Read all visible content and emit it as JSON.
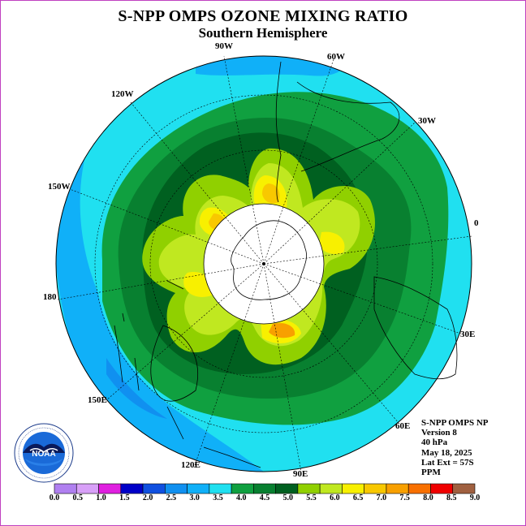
{
  "title": "S-NPP OMPS OZONE MIXING RATIO",
  "subtitle": "Southern Hemisphere",
  "longitude_labels": [
    "90W",
    "60W",
    "120W",
    "30W",
    "150W",
    "0",
    "180",
    "30E",
    "150E",
    "60E",
    "120E",
    "90E"
  ],
  "info": {
    "line1": "S-NPP OMPS NP",
    "line2": "Version 8",
    "line3": "40 hPa",
    "line4": "May 18, 2025",
    "line5": "Lat Ext = 57S",
    "line6": "PPM"
  },
  "logo_text": "NOAA",
  "logo_ring_text": "NATIONAL OCEANIC AND ATMOSPHERIC ADMINISTRATION · U.S. DEPARTMENT OF COMMERCE",
  "colorbar": {
    "ticks": [
      "0.0",
      "0.5",
      "1.0",
      "1.5",
      "2.0",
      "2.5",
      "3.0",
      "3.5",
      "4.0",
      "4.5",
      "5.0",
      "5.5",
      "6.0",
      "6.5",
      "7.0",
      "7.5",
      "8.0",
      "8.5",
      "9.0"
    ],
    "colors": [
      "#b080f0",
      "#d8a0f8",
      "#e020e0",
      "#0000c8",
      "#1050e0",
      "#1090f0",
      "#10b0f8",
      "#20e0f0",
      "#10a040",
      "#088030",
      "#006020",
      "#90d000",
      "#c0e820",
      "#f8f000",
      "#f8c800",
      "#f8a000",
      "#f87000",
      "#f00000",
      "#a06040"
    ]
  }
}
